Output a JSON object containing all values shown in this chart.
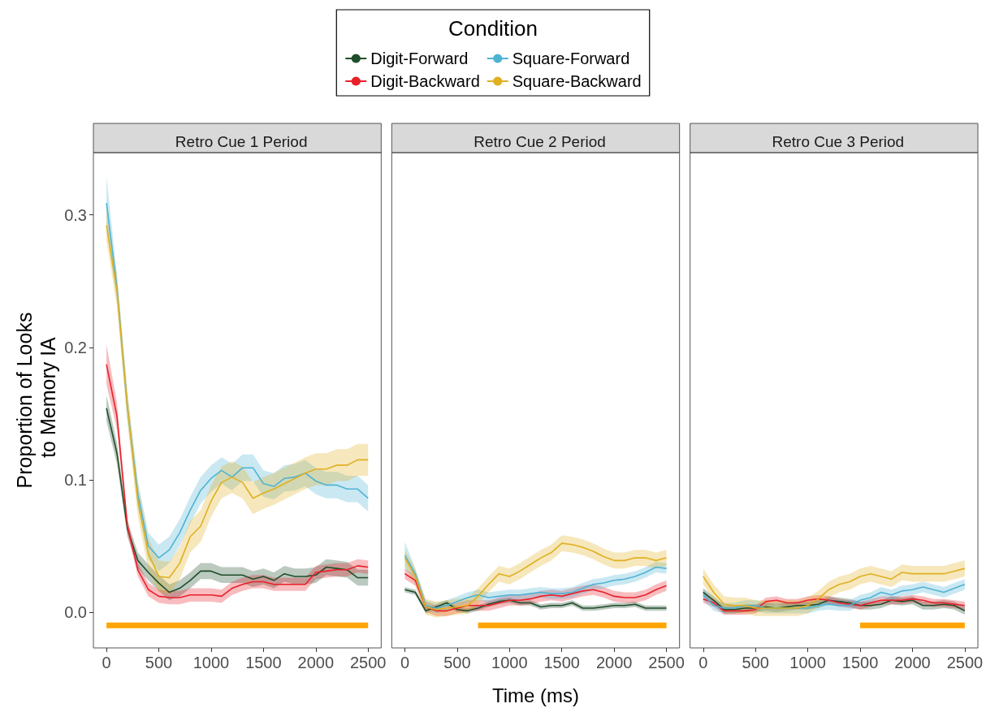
{
  "chart_data": [
    {
      "type": "line",
      "title": "Retro Cue 1 Period",
      "ylabel": "Proportion of Looks to Memory IA",
      "legend_title": "Condition",
      "legend": "top",
      "grid": false,
      "x": [
        0,
        100,
        200,
        300,
        400,
        500,
        600,
        700,
        800,
        900,
        1000,
        1100,
        1200,
        1300,
        1400,
        1500,
        1600,
        1700,
        1800,
        1900,
        2000,
        2100,
        2200,
        2300,
        2400,
        2500
      ],
      "xlim": [
        -125,
        2625
      ],
      "xticks": [
        0,
        500,
        1000,
        1500,
        2000,
        2500
      ],
      "ylim": [
        -0.027,
        0.347
      ],
      "yticks": [
        {
          "value": 0,
          "label": "0.0"
        },
        0.1,
        0.2,
        0.3
      ],
      "series": [
        {
          "name": "Digit-Forward",
          "color": "#1f4d2b",
          "values": [
            0.154,
            0.12,
            0.063,
            0.039,
            0.03,
            0.022,
            0.015,
            0.018,
            0.024,
            0.031,
            0.031,
            0.028,
            0.028,
            0.028,
            0.025,
            0.027,
            0.024,
            0.029,
            0.027,
            0.027,
            0.028,
            0.034,
            0.033,
            0.032,
            0.026,
            0.026
          ],
          "lower": [
            0.144,
            0.112,
            0.057,
            0.033,
            0.024,
            0.016,
            0.009,
            0.012,
            0.018,
            0.025,
            0.025,
            0.022,
            0.022,
            0.022,
            0.019,
            0.021,
            0.018,
            0.023,
            0.021,
            0.021,
            0.022,
            0.028,
            0.027,
            0.026,
            0.02,
            0.02
          ],
          "upper": [
            0.164,
            0.128,
            0.069,
            0.045,
            0.036,
            0.028,
            0.021,
            0.024,
            0.03,
            0.037,
            0.037,
            0.034,
            0.034,
            0.034,
            0.031,
            0.033,
            0.03,
            0.035,
            0.033,
            0.033,
            0.034,
            0.04,
            0.039,
            0.038,
            0.032,
            0.032
          ]
        },
        {
          "name": "Digit-Backward",
          "color": "#e8202a",
          "values": [
            0.187,
            0.148,
            0.065,
            0.032,
            0.017,
            0.012,
            0.011,
            0.011,
            0.013,
            0.013,
            0.013,
            0.012,
            0.018,
            0.021,
            0.023,
            0.023,
            0.021,
            0.021,
            0.021,
            0.021,
            0.03,
            0.031,
            0.032,
            0.032,
            0.035,
            0.034
          ],
          "lower": [
            0.172,
            0.138,
            0.06,
            0.027,
            0.012,
            0.007,
            0.006,
            0.006,
            0.008,
            0.008,
            0.008,
            0.007,
            0.013,
            0.016,
            0.018,
            0.018,
            0.016,
            0.016,
            0.016,
            0.016,
            0.025,
            0.026,
            0.027,
            0.027,
            0.03,
            0.029
          ],
          "upper": [
            0.202,
            0.158,
            0.07,
            0.037,
            0.022,
            0.017,
            0.016,
            0.016,
            0.018,
            0.018,
            0.018,
            0.017,
            0.023,
            0.026,
            0.028,
            0.028,
            0.026,
            0.026,
            0.026,
            0.026,
            0.035,
            0.036,
            0.037,
            0.037,
            0.04,
            0.039
          ]
        },
        {
          "name": "Square-Forward",
          "color": "#4eb3d3",
          "values": [
            0.309,
            0.245,
            0.155,
            0.089,
            0.05,
            0.041,
            0.047,
            0.06,
            0.077,
            0.092,
            0.101,
            0.107,
            0.102,
            0.109,
            0.109,
            0.097,
            0.095,
            0.101,
            0.102,
            0.105,
            0.099,
            0.096,
            0.096,
            0.093,
            0.093,
            0.086
          ],
          "lower": [
            0.289,
            0.235,
            0.145,
            0.079,
            0.04,
            0.031,
            0.037,
            0.05,
            0.067,
            0.082,
            0.091,
            0.097,
            0.092,
            0.099,
            0.099,
            0.087,
            0.085,
            0.091,
            0.092,
            0.095,
            0.089,
            0.086,
            0.086,
            0.083,
            0.083,
            0.076
          ],
          "upper": [
            0.329,
            0.255,
            0.165,
            0.099,
            0.06,
            0.051,
            0.057,
            0.07,
            0.087,
            0.102,
            0.111,
            0.117,
            0.112,
            0.119,
            0.119,
            0.107,
            0.105,
            0.111,
            0.112,
            0.115,
            0.109,
            0.106,
            0.106,
            0.103,
            0.103,
            0.096
          ]
        },
        {
          "name": "Square-Backward",
          "color": "#e0b020",
          "values": [
            0.292,
            0.243,
            0.155,
            0.084,
            0.044,
            0.027,
            0.026,
            0.037,
            0.057,
            0.065,
            0.084,
            0.098,
            0.102,
            0.098,
            0.086,
            0.09,
            0.093,
            0.097,
            0.101,
            0.105,
            0.108,
            0.108,
            0.111,
            0.111,
            0.115,
            0.115
          ],
          "lower": [
            0.28,
            0.231,
            0.143,
            0.072,
            0.032,
            0.015,
            0.014,
            0.025,
            0.045,
            0.053,
            0.072,
            0.086,
            0.09,
            0.086,
            0.074,
            0.078,
            0.081,
            0.085,
            0.089,
            0.093,
            0.096,
            0.096,
            0.099,
            0.099,
            0.103,
            0.103
          ],
          "upper": [
            0.304,
            0.255,
            0.167,
            0.096,
            0.056,
            0.039,
            0.038,
            0.049,
            0.069,
            0.077,
            0.096,
            0.11,
            0.114,
            0.11,
            0.098,
            0.102,
            0.105,
            0.109,
            0.113,
            0.117,
            0.12,
            0.12,
            0.123,
            0.123,
            0.127,
            0.127
          ]
        },
        {
          "color": "#ffa500",
          "x": [
            0,
            2500
          ],
          "values": [
            -0.01,
            -0.01
          ]
        }
      ]
    },
    {
      "type": "line",
      "title": "Retro Cue 2 Period",
      "xlabel": "Time (ms)",
      "grid": false,
      "tick_labels": "x",
      "x": [
        0,
        100,
        200,
        300,
        400,
        500,
        600,
        700,
        800,
        900,
        1000,
        1100,
        1200,
        1300,
        1400,
        1500,
        1600,
        1700,
        1800,
        1900,
        2000,
        2100,
        2200,
        2300,
        2400,
        2500
      ],
      "xlim": [
        -125,
        2625
      ],
      "xticks": [
        0,
        500,
        1000,
        1500,
        2000,
        2500
      ],
      "ylim": [
        -0.027,
        0.347
      ],
      "series": [
        {
          "color": "#1f4d2b",
          "values": [
            0.017,
            0.015,
            0.001,
            0.004,
            0.007,
            0.002,
            0.001,
            0.003,
            0.006,
            0.008,
            0.009,
            0.007,
            0.007,
            0.004,
            0.005,
            0.005,
            0.007,
            0.003,
            0.003,
            0.004,
            0.005,
            0.005,
            0.006,
            0.003,
            0.003,
            0.003
          ],
          "lower": [
            0.015,
            0.013,
            -0.001,
            0.002,
            0.005,
            0.0,
            -0.001,
            0.001,
            0.004,
            0.006,
            0.007,
            0.005,
            0.005,
            0.002,
            0.003,
            0.003,
            0.005,
            0.001,
            0.001,
            0.002,
            0.003,
            0.003,
            0.004,
            0.001,
            0.001,
            0.001
          ],
          "upper": [
            0.019,
            0.017,
            0.003,
            0.006,
            0.009,
            0.004,
            0.003,
            0.005,
            0.008,
            0.01,
            0.011,
            0.009,
            0.009,
            0.006,
            0.007,
            0.007,
            0.009,
            0.005,
            0.005,
            0.006,
            0.007,
            0.007,
            0.008,
            0.005,
            0.005,
            0.005
          ]
        },
        {
          "color": "#e8202a",
          "values": [
            0.029,
            0.024,
            0.004,
            0.001,
            0.001,
            0.003,
            0.005,
            0.005,
            0.005,
            0.007,
            0.009,
            0.009,
            0.01,
            0.012,
            0.013,
            0.012,
            0.014,
            0.016,
            0.017,
            0.015,
            0.012,
            0.011,
            0.011,
            0.013,
            0.017,
            0.02
          ],
          "lower": [
            0.025,
            0.02,
            0.0,
            -0.003,
            -0.003,
            -0.001,
            0.001,
            0.001,
            0.001,
            0.003,
            0.005,
            0.005,
            0.006,
            0.008,
            0.009,
            0.008,
            0.01,
            0.012,
            0.013,
            0.011,
            0.008,
            0.007,
            0.007,
            0.009,
            0.013,
            0.016
          ],
          "upper": [
            0.033,
            0.028,
            0.008,
            0.005,
            0.005,
            0.007,
            0.009,
            0.009,
            0.009,
            0.011,
            0.013,
            0.013,
            0.014,
            0.016,
            0.017,
            0.016,
            0.018,
            0.02,
            0.021,
            0.019,
            0.016,
            0.015,
            0.015,
            0.017,
            0.021,
            0.024
          ]
        },
        {
          "color": "#4eb3d3",
          "values": [
            0.043,
            0.029,
            0.005,
            0.003,
            0.005,
            0.008,
            0.011,
            0.013,
            0.011,
            0.012,
            0.013,
            0.013,
            0.014,
            0.015,
            0.014,
            0.014,
            0.015,
            0.018,
            0.021,
            0.022,
            0.024,
            0.025,
            0.027,
            0.03,
            0.034,
            0.033
          ],
          "lower": [
            0.033,
            0.025,
            0.001,
            -0.001,
            0.001,
            0.004,
            0.007,
            0.009,
            0.007,
            0.008,
            0.009,
            0.009,
            0.01,
            0.011,
            0.01,
            0.01,
            0.011,
            0.014,
            0.017,
            0.018,
            0.02,
            0.021,
            0.023,
            0.026,
            0.03,
            0.029
          ],
          "upper": [
            0.053,
            0.033,
            0.009,
            0.007,
            0.009,
            0.012,
            0.015,
            0.017,
            0.015,
            0.016,
            0.017,
            0.017,
            0.018,
            0.019,
            0.018,
            0.018,
            0.019,
            0.022,
            0.025,
            0.026,
            0.028,
            0.029,
            0.031,
            0.034,
            0.038,
            0.037
          ]
        },
        {
          "color": "#e0b020",
          "values": [
            0.041,
            0.027,
            0.004,
            0.002,
            0.003,
            0.004,
            0.005,
            0.012,
            0.021,
            0.029,
            0.027,
            0.031,
            0.036,
            0.041,
            0.045,
            0.052,
            0.051,
            0.049,
            0.046,
            0.042,
            0.039,
            0.039,
            0.041,
            0.041,
            0.039,
            0.041
          ],
          "lower": [
            0.035,
            0.021,
            -0.002,
            -0.004,
            -0.003,
            -0.002,
            -0.001,
            0.006,
            0.015,
            0.023,
            0.021,
            0.025,
            0.03,
            0.035,
            0.039,
            0.046,
            0.045,
            0.043,
            0.04,
            0.036,
            0.033,
            0.033,
            0.035,
            0.035,
            0.033,
            0.035
          ],
          "upper": [
            0.047,
            0.033,
            0.01,
            0.008,
            0.009,
            0.01,
            0.011,
            0.018,
            0.027,
            0.035,
            0.033,
            0.037,
            0.042,
            0.047,
            0.051,
            0.058,
            0.057,
            0.055,
            0.052,
            0.048,
            0.045,
            0.045,
            0.047,
            0.047,
            0.045,
            0.047
          ]
        },
        {
          "color": "#ffa500",
          "x": [
            700,
            2500
          ],
          "values": [
            -0.01,
            -0.01
          ]
        }
      ]
    },
    {
      "type": "line",
      "title": "Retro Cue 3 Period",
      "grid": false,
      "tick_labels": "x",
      "x": [
        0,
        100,
        200,
        300,
        400,
        500,
        600,
        700,
        800,
        900,
        1000,
        1100,
        1200,
        1300,
        1400,
        1500,
        1600,
        1700,
        1800,
        1900,
        2000,
        2100,
        2200,
        2300,
        2400,
        2500
      ],
      "xlim": [
        -125,
        2625
      ],
      "xticks": [
        0,
        500,
        1000,
        1500,
        2000,
        2500
      ],
      "ylim": [
        -0.027,
        0.347
      ],
      "series": [
        {
          "color": "#1f4d2b",
          "values": [
            0.015,
            0.009,
            0.002,
            0.002,
            0.003,
            0.003,
            0.004,
            0.003,
            0.004,
            0.005,
            0.005,
            0.006,
            0.009,
            0.008,
            0.007,
            0.005,
            0.005,
            0.006,
            0.009,
            0.008,
            0.009,
            0.005,
            0.005,
            0.006,
            0.005,
            0.001
          ],
          "lower": [
            0.012,
            0.006,
            -0.001,
            -0.001,
            0.0,
            0.0,
            0.001,
            0.0,
            0.001,
            0.002,
            0.002,
            0.003,
            0.006,
            0.005,
            0.004,
            0.002,
            0.002,
            0.003,
            0.006,
            0.005,
            0.006,
            0.002,
            0.002,
            0.003,
            0.002,
            -0.002
          ],
          "upper": [
            0.018,
            0.012,
            0.005,
            0.005,
            0.006,
            0.006,
            0.007,
            0.006,
            0.007,
            0.008,
            0.008,
            0.009,
            0.012,
            0.011,
            0.01,
            0.008,
            0.008,
            0.009,
            0.012,
            0.011,
            0.012,
            0.008,
            0.008,
            0.009,
            0.008,
            0.004
          ]
        },
        {
          "color": "#e8202a",
          "values": [
            0.01,
            0.007,
            0.001,
            0.001,
            0.001,
            0.002,
            0.008,
            0.009,
            0.007,
            0.007,
            0.009,
            0.01,
            0.009,
            0.007,
            0.006,
            0.005,
            0.007,
            0.009,
            0.009,
            0.009,
            0.01,
            0.009,
            0.007,
            0.007,
            0.006,
            0.005
          ],
          "lower": [
            0.007,
            0.004,
            -0.002,
            -0.002,
            -0.002,
            -0.001,
            0.005,
            0.006,
            0.004,
            0.004,
            0.006,
            0.007,
            0.006,
            0.004,
            0.003,
            0.002,
            0.004,
            0.006,
            0.006,
            0.006,
            0.007,
            0.006,
            0.004,
            0.004,
            0.003,
            0.002
          ],
          "upper": [
            0.013,
            0.01,
            0.004,
            0.004,
            0.004,
            0.005,
            0.011,
            0.012,
            0.01,
            0.01,
            0.012,
            0.013,
            0.012,
            0.01,
            0.009,
            0.008,
            0.01,
            0.012,
            0.012,
            0.012,
            0.013,
            0.012,
            0.01,
            0.01,
            0.009,
            0.008
          ]
        },
        {
          "color": "#4eb3d3",
          "values": [
            0.013,
            0.005,
            0.003,
            0.003,
            0.005,
            0.005,
            0.003,
            0.003,
            0.003,
            0.003,
            0.003,
            0.005,
            0.006,
            0.005,
            0.005,
            0.009,
            0.011,
            0.015,
            0.013,
            0.016,
            0.017,
            0.019,
            0.017,
            0.015,
            0.018,
            0.021
          ],
          "lower": [
            0.009,
            0.001,
            -0.001,
            -0.001,
            0.001,
            0.001,
            -0.001,
            -0.001,
            -0.001,
            -0.001,
            -0.001,
            0.001,
            0.002,
            0.001,
            0.001,
            0.005,
            0.007,
            0.011,
            0.009,
            0.012,
            0.013,
            0.015,
            0.013,
            0.011,
            0.014,
            0.017
          ],
          "upper": [
            0.017,
            0.009,
            0.007,
            0.007,
            0.009,
            0.009,
            0.007,
            0.007,
            0.007,
            0.007,
            0.007,
            0.009,
            0.01,
            0.009,
            0.009,
            0.013,
            0.015,
            0.019,
            0.017,
            0.02,
            0.021,
            0.023,
            0.021,
            0.019,
            0.022,
            0.025
          ]
        },
        {
          "color": "#e0b020",
          "values": [
            0.027,
            0.015,
            0.006,
            0.005,
            0.005,
            0.003,
            0.003,
            0.003,
            0.003,
            0.003,
            0.005,
            0.01,
            0.017,
            0.021,
            0.023,
            0.027,
            0.029,
            0.027,
            0.025,
            0.03,
            0.029,
            0.029,
            0.029,
            0.029,
            0.031,
            0.033
          ],
          "lower": [
            0.021,
            0.009,
            0.0,
            -0.001,
            -0.001,
            -0.003,
            -0.003,
            -0.003,
            -0.003,
            -0.003,
            -0.001,
            0.004,
            0.011,
            0.015,
            0.017,
            0.021,
            0.023,
            0.021,
            0.019,
            0.024,
            0.023,
            0.023,
            0.023,
            0.023,
            0.025,
            0.027
          ],
          "upper": [
            0.033,
            0.021,
            0.012,
            0.011,
            0.011,
            0.009,
            0.009,
            0.009,
            0.009,
            0.009,
            0.011,
            0.016,
            0.023,
            0.027,
            0.029,
            0.033,
            0.035,
            0.033,
            0.031,
            0.036,
            0.035,
            0.035,
            0.035,
            0.035,
            0.037,
            0.039
          ]
        },
        {
          "color": "#ffa500",
          "x": [
            1500,
            2500
          ],
          "values": [
            -0.01,
            -0.01
          ]
        }
      ]
    }
  ]
}
